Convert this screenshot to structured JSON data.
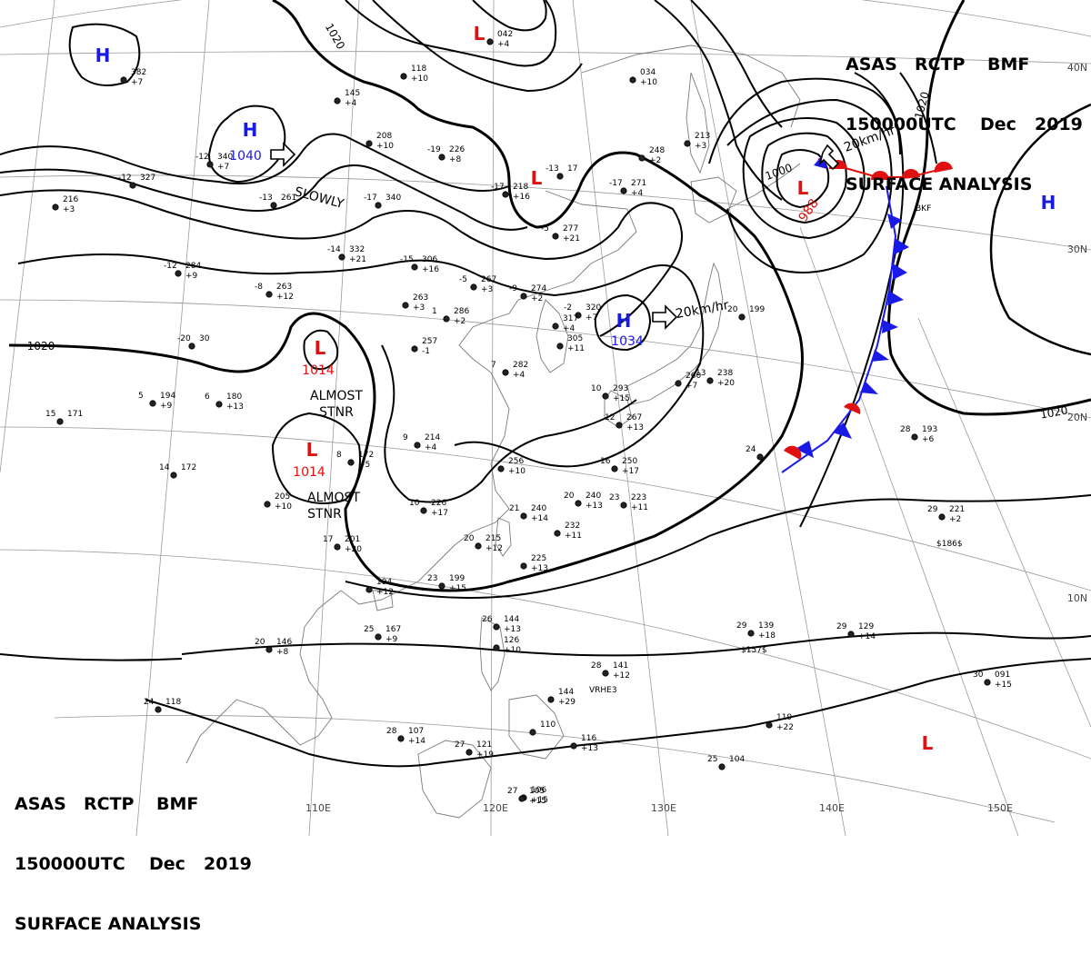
{
  "header": {
    "line1": [
      "ASAS",
      "RCTP",
      "BMF"
    ],
    "line2": [
      "150000UTC",
      "Dec",
      "2019"
    ],
    "line3": "SURFACE ANALYSIS"
  },
  "lon_labels": [
    "110E",
    "120E",
    "130E",
    "140E",
    "150E"
  ],
  "lat_labels": [
    "40N",
    "30N",
    "20N",
    "10N"
  ],
  "pressure_centers": [
    {
      "letter": "H",
      "value": "1040",
      "color": "#1a1ae6"
    },
    {
      "letter": "H",
      "value": "1034",
      "color": "#1a1ae6"
    },
    {
      "letter": "H",
      "value": "",
      "color": "#1a1ae6"
    },
    {
      "letter": "H",
      "value": "",
      "color": "#1a1ae6"
    },
    {
      "letter": "L",
      "value": "1014",
      "color": "#e01010"
    },
    {
      "letter": "L",
      "value": "1014",
      "color": "#e01010"
    },
    {
      "letter": "L",
      "value": "988",
      "color": "#e01010"
    },
    {
      "letter": "L",
      "value": "",
      "color": "#e01010"
    },
    {
      "letter": "L",
      "value": "",
      "color": "#e01010"
    },
    {
      "letter": "L",
      "value": "",
      "color": "#e01010"
    }
  ],
  "isobar_labels": [
    "1020",
    "1020",
    "1020",
    "1020",
    "1000"
  ],
  "annotations": [
    "SLOWLY",
    "ALMOST",
    "STNR",
    "ALMOST",
    "STNR",
    "20km/hr",
    "20km/hr"
  ],
  "stations": [
    {
      "t": "-12",
      "p": "327",
      "d": ""
    },
    {
      "t": "-12",
      "p": "340",
      "d": "+7"
    },
    {
      "t": "",
      "p": "382",
      "d": "+7"
    },
    {
      "t": "-13",
      "p": "261",
      "d": ""
    },
    {
      "t": "-17",
      "p": "340",
      "d": ""
    },
    {
      "t": "",
      "p": "216",
      "d": "+3"
    },
    {
      "t": "-12",
      "p": "284",
      "d": "+9"
    },
    {
      "t": "-14",
      "p": "332",
      "d": "+21"
    },
    {
      "t": "-8",
      "p": "263",
      "d": "+12"
    },
    {
      "t": "-15",
      "p": "306",
      "d": "+16"
    },
    {
      "t": "-19",
      "p": "226",
      "d": "+8"
    },
    {
      "t": "",
      "p": "208",
      "d": "+10"
    },
    {
      "t": "",
      "p": "145",
      "d": "+4"
    },
    {
      "t": "",
      "p": "118",
      "d": "+10"
    },
    {
      "t": "",
      "p": "042",
      "d": "+4"
    },
    {
      "t": "-17",
      "p": "218",
      "d": "+16"
    },
    {
      "t": "-13",
      "p": "17",
      "d": ""
    },
    {
      "t": "-17",
      "p": "271",
      "d": "+4"
    },
    {
      "t": "",
      "p": "248",
      "d": "+2"
    },
    {
      "t": "",
      "p": "213",
      "d": "+3"
    },
    {
      "t": "",
      "p": "034",
      "d": "+10"
    },
    {
      "t": "-5",
      "p": "277",
      "d": "+21"
    },
    {
      "t": "-5",
      "p": "267",
      "d": "+3"
    },
    {
      "t": "-9",
      "p": "274",
      "d": "+2"
    },
    {
      "t": "",
      "p": "263",
      "d": "+3"
    },
    {
      "t": "1",
      "p": "286",
      "d": "+2"
    },
    {
      "t": "-2",
      "p": "320",
      "d": "+7"
    },
    {
      "t": "",
      "p": "317",
      "d": "+4"
    },
    {
      "t": "",
      "p": "305",
      "d": "+11"
    },
    {
      "t": "",
      "p": "257",
      "d": "-1"
    },
    {
      "t": "7",
      "p": "282",
      "d": "+4"
    },
    {
      "t": "-20",
      "p": "30",
      "d": ""
    },
    {
      "t": "5",
      "p": "194",
      "d": "+9"
    },
    {
      "t": "6",
      "p": "180",
      "d": "+13"
    },
    {
      "t": "15",
      "p": "171",
      "d": ""
    },
    {
      "t": "14",
      "p": "172",
      "d": ""
    },
    {
      "t": "9",
      "p": "214",
      "d": "+4"
    },
    {
      "t": "8",
      "p": "172",
      "d": "+5"
    },
    {
      "t": "",
      "p": "205",
      "d": "+10"
    },
    {
      "t": "",
      "p": "256",
      "d": "+10"
    },
    {
      "t": "16",
      "p": "250",
      "d": "+17"
    },
    {
      "t": "10",
      "p": "226",
      "d": "+17"
    },
    {
      "t": "21",
      "p": "240",
      "d": "+14"
    },
    {
      "t": "20",
      "p": "240",
      "d": "+13"
    },
    {
      "t": "23",
      "p": "223",
      "d": "+11"
    },
    {
      "t": "",
      "p": "232",
      "d": "+11"
    },
    {
      "t": "20",
      "p": "215",
      "d": "+12"
    },
    {
      "t": "",
      "p": "225",
      "d": "+13"
    },
    {
      "t": "17",
      "p": "201",
      "d": "+20"
    },
    {
      "t": "",
      "p": "194",
      "d": "+12"
    },
    {
      "t": "23",
      "p": "199",
      "d": "+15"
    },
    {
      "t": "25",
      "p": "167",
      "d": "+9"
    },
    {
      "t": "20",
      "p": "146",
      "d": "+8"
    },
    {
      "t": "12",
      "p": "267",
      "d": "+13"
    },
    {
      "t": "10",
      "p": "293",
      "d": "+15"
    },
    {
      "t": "",
      "p": "260",
      "d": "+7"
    },
    {
      "t": "13",
      "p": "238",
      "d": "+20"
    },
    {
      "t": "20",
      "p": "199",
      "d": ""
    },
    {
      "t": "28",
      "p": "193",
      "d": "+6"
    },
    {
      "t": "29",
      "p": "221",
      "d": "+2"
    },
    {
      "t": "24",
      "p": "",
      "d": ""
    },
    {
      "t": "26",
      "p": "144",
      "d": "+13"
    },
    {
      "t": "",
      "p": "126",
      "d": "+10"
    },
    {
      "t": "29",
      "p": "139",
      "d": "+18"
    },
    {
      "t": "29",
      "p": "129",
      "d": "+14"
    },
    {
      "t": "28",
      "p": "141",
      "d": "+12"
    },
    {
      "t": "",
      "p": "144",
      "d": "+29"
    },
    {
      "t": "",
      "p": "110",
      "d": ""
    },
    {
      "t": "",
      "p": "119",
      "d": "+22"
    },
    {
      "t": "30",
      "p": "091",
      "d": "+15"
    },
    {
      "t": "28",
      "p": "107",
      "d": "+14"
    },
    {
      "t": "27",
      "p": "121",
      "d": "+19"
    },
    {
      "t": "",
      "p": "116",
      "d": "+13"
    },
    {
      "t": "",
      "p": "106",
      "d": "+15"
    },
    {
      "t": "25",
      "p": "104",
      "d": ""
    },
    {
      "t": "24",
      "p": "118",
      "d": ""
    },
    {
      "t": "27",
      "p": "105",
      "d": "+15"
    }
  ],
  "ship_labels": [
    "$186$",
    "$157$",
    "VRHE3",
    "BKF"
  ],
  "colors": {
    "high": "#1a1ae6",
    "low": "#e01010",
    "cold_front": "#1a1ae6",
    "warm_front": "#e01010",
    "isobar": "#000000"
  }
}
